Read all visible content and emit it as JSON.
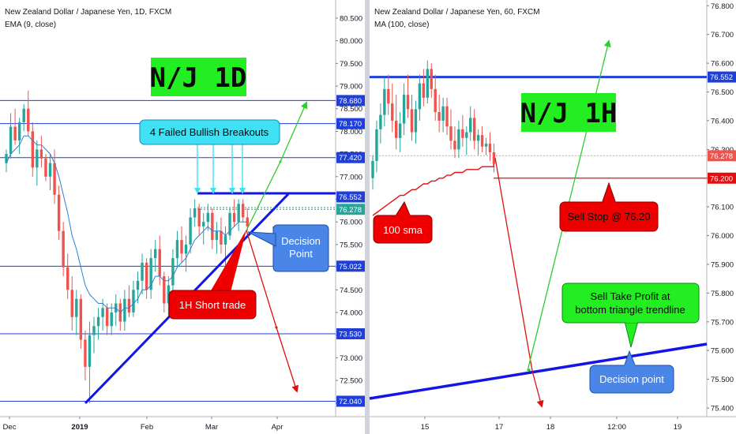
{
  "chart_data": [
    {
      "type": "candlestick",
      "title": "New Zealand Dollar / Japanese Yen, 1D, FXCM",
      "subtitle": "EMA (9, close)",
      "x_ticks": [
        "Dec",
        "2019",
        "Feb",
        "Mar",
        "Apr"
      ],
      "y_ticks": [
        72.0,
        72.5,
        73.0,
        73.5,
        74.0,
        74.5,
        75.0,
        75.5,
        76.0,
        76.5,
        77.0,
        77.5,
        78.0,
        78.5,
        79.0,
        79.5,
        80.0,
        80.5
      ],
      "ylim": [
        71.7,
        80.9
      ],
      "levels": [
        {
          "value": 78.68,
          "label": "78.680"
        },
        {
          "value": 78.17,
          "label": "78.170"
        },
        {
          "value": 77.42,
          "label": "77.420"
        },
        {
          "value": 76.552,
          "label": "76.552"
        },
        {
          "value": 76.278,
          "label": "76.278"
        },
        {
          "value": 75.022,
          "label": "75.022"
        },
        {
          "value": 73.53,
          "label": "73.530"
        },
        {
          "value": 72.04,
          "label": "72.040"
        }
      ],
      "candles": [
        [
          77.3,
          77.6,
          77.1,
          77.5
        ],
        [
          77.5,
          78.4,
          77.4,
          78.1
        ],
        [
          78.1,
          78.5,
          77.7,
          77.8
        ],
        [
          77.8,
          78.3,
          77.5,
          78.2
        ],
        [
          78.2,
          78.6,
          78.0,
          78.5
        ],
        [
          78.5,
          78.9,
          77.9,
          78.0
        ],
        [
          78.0,
          78.2,
          77.0,
          77.2
        ],
        [
          77.2,
          77.8,
          76.8,
          77.6
        ],
        [
          77.6,
          77.9,
          77.2,
          77.4
        ],
        [
          77.4,
          77.5,
          76.9,
          77.0
        ],
        [
          77.0,
          77.5,
          76.7,
          77.3
        ],
        [
          77.3,
          77.6,
          76.4,
          76.6
        ],
        [
          76.6,
          76.8,
          75.6,
          75.8
        ],
        [
          75.8,
          76.0,
          74.8,
          75.0
        ],
        [
          75.0,
          75.3,
          74.3,
          74.5
        ],
        [
          74.5,
          74.8,
          73.6,
          73.9
        ],
        [
          73.9,
          74.5,
          73.5,
          74.3
        ],
        [
          74.3,
          74.4,
          73.2,
          73.4
        ],
        [
          73.4,
          73.6,
          72.5,
          72.8
        ],
        [
          72.8,
          73.8,
          72.0,
          73.5
        ],
        [
          73.5,
          73.9,
          73.1,
          73.7
        ],
        [
          73.7,
          74.1,
          73.4,
          73.9
        ],
        [
          73.9,
          74.3,
          73.6,
          74.1
        ],
        [
          74.1,
          74.2,
          73.5,
          73.7
        ],
        [
          73.7,
          74.2,
          73.5,
          74.0
        ],
        [
          74.0,
          74.4,
          73.7,
          74.2
        ],
        [
          74.2,
          74.3,
          73.6,
          73.8
        ],
        [
          73.8,
          74.5,
          73.6,
          74.3
        ],
        [
          74.3,
          74.6,
          73.9,
          74.0
        ],
        [
          74.0,
          74.7,
          73.9,
          74.5
        ],
        [
          74.5,
          74.9,
          74.2,
          74.7
        ],
        [
          74.7,
          75.3,
          74.4,
          75.1
        ],
        [
          75.1,
          75.2,
          74.3,
          74.5
        ],
        [
          74.5,
          75.4,
          74.3,
          75.2
        ],
        [
          75.2,
          75.6,
          74.9,
          75.4
        ],
        [
          75.4,
          75.7,
          74.6,
          74.8
        ],
        [
          74.8,
          74.9,
          74.0,
          74.2
        ],
        [
          74.2,
          74.8,
          73.9,
          74.6
        ],
        [
          74.6,
          75.4,
          74.4,
          75.2
        ],
        [
          75.2,
          75.8,
          75.0,
          75.6
        ],
        [
          75.6,
          75.9,
          75.1,
          75.3
        ],
        [
          75.3,
          75.7,
          74.9,
          75.5
        ],
        [
          75.5,
          76.3,
          75.3,
          76.1
        ],
        [
          76.1,
          76.5,
          75.9,
          76.3
        ],
        [
          76.3,
          76.4,
          75.7,
          75.9
        ],
        [
          75.9,
          76.2,
          75.5,
          76.0
        ],
        [
          76.0,
          76.4,
          75.8,
          76.2
        ],
        [
          76.2,
          76.3,
          75.4,
          75.6
        ],
        [
          75.6,
          76.0,
          75.3,
          75.8
        ],
        [
          75.8,
          76.1,
          75.3,
          75.5
        ],
        [
          75.5,
          75.9,
          75.0,
          75.7
        ],
        [
          75.7,
          76.3,
          75.6,
          76.2
        ],
        [
          76.2,
          76.5,
          75.9,
          76.0
        ],
        [
          76.0,
          76.5,
          75.8,
          76.4
        ],
        [
          76.4,
          76.5,
          76.0,
          76.1
        ],
        [
          76.1,
          76.3,
          75.8,
          75.9
        ]
      ],
      "ema": [
        77.3,
        77.5,
        77.6,
        77.7,
        77.9,
        77.9,
        77.8,
        77.7,
        77.7,
        77.6,
        77.5,
        77.3,
        77.0,
        76.6,
        76.2,
        75.7,
        75.4,
        75.0,
        74.6,
        74.4,
        74.3,
        74.2,
        74.2,
        74.1,
        74.1,
        74.1,
        74.0,
        74.1,
        74.1,
        74.2,
        74.3,
        74.5,
        74.5,
        74.6,
        74.8,
        74.8,
        74.7,
        74.7,
        74.8,
        75.0,
        75.1,
        75.2,
        75.4,
        75.6,
        75.7,
        75.8,
        75.9,
        75.8,
        75.8,
        75.8,
        75.7,
        75.8,
        75.9,
        76.0,
        76.0,
        76.0
      ],
      "annotations": [
        {
          "text": "N/J 1D"
        },
        {
          "text": "4 Failed Bullish Breakouts"
        },
        {
          "text": "Decision Point"
        },
        {
          "text": "1H Short trade"
        }
      ],
      "label_prefix": "cdl-1d"
    },
    {
      "type": "candlestick",
      "title": "New Zealand Dollar / Japanese Yen, 60, FXCM",
      "subtitle": "MA (100, close)",
      "x_ticks": [
        "15",
        "17",
        "18",
        "12:00",
        "19"
      ],
      "y_ticks": [
        75.4,
        75.5,
        75.6,
        75.7,
        75.8,
        75.9,
        76.0,
        76.1,
        76.2,
        76.3,
        76.4,
        76.5,
        76.6,
        76.7,
        76.8
      ],
      "ylim": [
        75.37,
        76.82
      ],
      "levels": [
        {
          "value": 76.552,
          "label": "76.552"
        },
        {
          "value": 76.278,
          "label": "76.278"
        },
        {
          "value": 76.2,
          "label": "76.200"
        }
      ],
      "candles": [
        [
          76.2,
          76.28,
          76.16,
          76.26
        ],
        [
          76.26,
          76.4,
          76.22,
          76.37
        ],
        [
          76.37,
          76.46,
          76.32,
          76.42
        ],
        [
          76.42,
          76.55,
          76.38,
          76.51
        ],
        [
          76.51,
          76.56,
          76.42,
          76.46
        ],
        [
          76.46,
          76.53,
          76.36,
          76.4
        ],
        [
          76.4,
          76.49,
          76.3,
          76.34
        ],
        [
          76.34,
          76.43,
          76.29,
          76.39
        ],
        [
          76.39,
          76.53,
          76.35,
          76.49
        ],
        [
          76.49,
          76.56,
          76.41,
          76.44
        ],
        [
          76.44,
          76.49,
          76.33,
          76.36
        ],
        [
          76.36,
          76.47,
          76.32,
          76.44
        ],
        [
          76.44,
          76.56,
          76.4,
          76.53
        ],
        [
          76.53,
          76.58,
          76.45,
          76.48
        ],
        [
          76.48,
          76.61,
          76.46,
          76.58
        ],
        [
          76.58,
          76.6,
          76.48,
          76.51
        ],
        [
          76.51,
          76.56,
          76.4,
          76.43
        ],
        [
          76.43,
          76.49,
          76.36,
          76.4
        ],
        [
          76.4,
          76.48,
          76.36,
          76.45
        ],
        [
          76.45,
          76.48,
          76.35,
          76.38
        ],
        [
          76.38,
          76.44,
          76.3,
          76.33
        ],
        [
          76.33,
          76.38,
          76.27,
          76.3
        ],
        [
          76.3,
          76.4,
          76.27,
          76.37
        ],
        [
          76.37,
          76.42,
          76.31,
          76.34
        ],
        [
          76.34,
          76.38,
          76.28,
          76.36
        ],
        [
          76.36,
          76.45,
          76.33,
          76.41
        ],
        [
          76.41,
          76.44,
          76.3,
          76.33
        ],
        [
          76.33,
          76.37,
          76.28,
          76.35
        ],
        [
          76.35,
          76.38,
          76.29,
          76.31
        ],
        [
          76.31,
          76.34,
          76.28,
          76.32
        ],
        [
          76.32,
          76.36,
          76.26,
          76.29
        ],
        [
          76.29,
          76.32,
          76.22,
          76.25
        ]
      ],
      "ma": [
        76.07,
        76.08,
        76.09,
        76.1,
        76.11,
        76.12,
        76.13,
        76.14,
        76.14,
        76.15,
        76.16,
        76.16,
        76.17,
        76.18,
        76.18,
        76.19,
        76.19,
        76.2,
        76.2,
        76.21,
        76.21,
        76.22,
        76.22,
        76.22,
        76.23,
        76.23,
        76.23,
        76.23,
        76.24,
        76.24,
        76.24,
        76.24
      ],
      "annotations": [
        {
          "text": "N/J 1H"
        },
        {
          "text": "100 sma"
        },
        {
          "text": "Sell Stop @ 76.20"
        },
        {
          "text": "Sell Take Profit at bottom triangle trendline"
        },
        {
          "text": "Decision point"
        }
      ],
      "label_prefix": "cdl-1h"
    }
  ],
  "labels": {
    "big_1d": "N/J 1D",
    "failed": "4 Failed Bullish Breakouts",
    "decision_1": "Decision",
    "decision_2": "Point",
    "short_trade": "1H Short trade",
    "big_1h": "N/J 1H",
    "sma": "100 sma",
    "sell_stop": "Sell Stop @ 76.20",
    "tp_1": "Sell Take Profit at",
    "tp_2": "bottom triangle trendline",
    "decision_pt": "Decision point"
  },
  "colors": {
    "bull": "#26a69a",
    "bear": "#ef5350",
    "level_blue": "#1f3fd8",
    "dotted_green": "#26a69a",
    "red_arrow": "#e01010",
    "green_arrow": "#2ecc2e",
    "badge_cyan": "#40e0f5",
    "badge_red": "#ee0000",
    "badge_blue": "#4a86e8",
    "badge_green": "#22ee22"
  }
}
